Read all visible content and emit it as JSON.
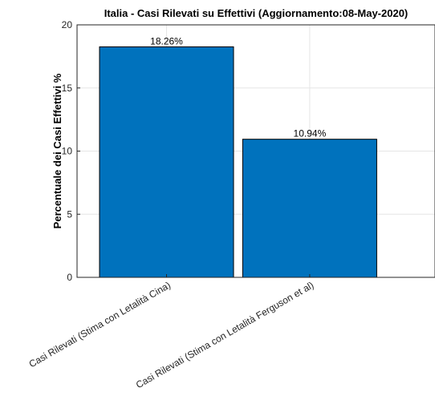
{
  "chart_data": {
    "type": "bar",
    "title": "Italia - Casi Rilevati su Effettivi (Aggiornamento:08-May-2020)",
    "xlabel": "",
    "ylabel": "Percentuale dei Casi Effettivi %",
    "categories": [
      "Casi Rilevati (Stima con Letalità Cina)",
      "Casi Rilevati (Stima con Letalità Ferguson et al)"
    ],
    "values": [
      18.26,
      10.94
    ],
    "data_labels": [
      "18.26%",
      "10.94%"
    ],
    "ylim": [
      0,
      20
    ],
    "yticks": [
      0,
      5,
      10,
      15,
      20
    ],
    "ytick_labels": [
      "0",
      "5",
      "10",
      "15",
      "20"
    ],
    "grid": true,
    "bar_color": "#0072BD",
    "legend": "none"
  }
}
